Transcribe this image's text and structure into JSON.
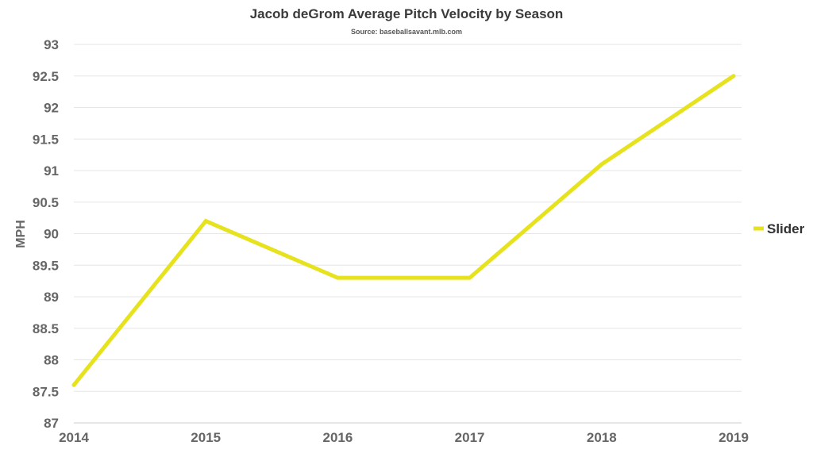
{
  "chart_data": {
    "type": "line",
    "title": "Jacob deGrom Average Pitch Velocity by Season",
    "subtitle": "Source: baseballsavant.mlb.com",
    "xlabel": "",
    "ylabel": "MPH",
    "x": [
      "2014",
      "2015",
      "2016",
      "2017",
      "2018",
      "2019"
    ],
    "ylim": [
      87,
      93
    ],
    "yticks": [
      "87",
      "87.5",
      "88",
      "88.5",
      "89",
      "89.5",
      "90",
      "90.5",
      "91",
      "91.5",
      "92",
      "92.5",
      "93"
    ],
    "grid": true,
    "legend_position": "right",
    "series": [
      {
        "name": "Slider",
        "color": "#e6e31e",
        "values": [
          87.6,
          90.2,
          89.3,
          89.3,
          91.1,
          92.5
        ]
      }
    ]
  }
}
